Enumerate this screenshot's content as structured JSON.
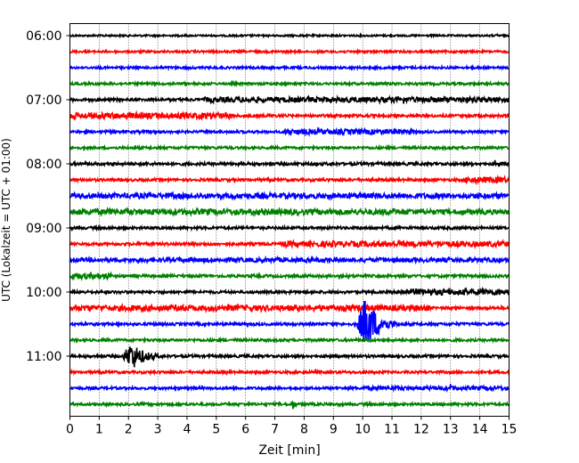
{
  "chart_data": {
    "type": "line",
    "subtype": "helicorder",
    "xlabel": "Zeit  [min]",
    "ylabel": "UTC (Lokalzeit = UTC + 01:00)",
    "xlim": [
      0,
      15
    ],
    "x_ticks": [
      "0",
      "1",
      "2",
      "3",
      "4",
      "5",
      "6",
      "7",
      "8",
      "9",
      "10",
      "11",
      "12",
      "13",
      "14",
      "15"
    ],
    "y_ticks": [
      "06:00",
      "07:00",
      "08:00",
      "09:00",
      "10:00",
      "11:00"
    ],
    "grid": "vertical dotted",
    "colors": [
      "#000000",
      "#ff0000",
      "#0000ff",
      "#008000"
    ],
    "traces": [
      {
        "start": "06:00",
        "color": "black",
        "noise": 1.0,
        "events": [
          {
            "x": 9.5,
            "amp": 2,
            "width": 0.3
          },
          {
            "x": 14.6,
            "amp": 2,
            "width": 0.2
          }
        ]
      },
      {
        "start": "06:15",
        "color": "red",
        "noise": 1.2,
        "events": []
      },
      {
        "start": "06:30",
        "color": "blue",
        "noise": 1.3,
        "events": []
      },
      {
        "start": "06:45",
        "color": "green",
        "noise": 1.3,
        "events": []
      },
      {
        "start": "07:00",
        "color": "black",
        "noise": 1.5,
        "segments": [
          {
            "from": 4.6,
            "to": 15,
            "level": 3
          }
        ],
        "events": [
          {
            "x": 11.4,
            "amp": 5,
            "width": 0.15
          }
        ]
      },
      {
        "start": "07:15",
        "color": "red",
        "noise": 1.5,
        "segments": [
          {
            "from": 0,
            "to": 5.5,
            "level": 3.5
          }
        ],
        "events": []
      },
      {
        "start": "07:30",
        "color": "blue",
        "noise": 1.4,
        "segments": [
          {
            "from": 7.3,
            "to": 11.7,
            "level": 3
          }
        ],
        "events": []
      },
      {
        "start": "07:45",
        "color": "green",
        "noise": 1.4,
        "events": []
      },
      {
        "start": "08:00",
        "color": "black",
        "noise": 1.6,
        "events": [
          {
            "x": 2.1,
            "amp": 2.5,
            "width": 0.2
          },
          {
            "x": 14.5,
            "amp": 6,
            "width": 0.15
          }
        ]
      },
      {
        "start": "08:15",
        "color": "red",
        "noise": 1.5,
        "segments": [
          {
            "from": 13.5,
            "to": 15,
            "level": 3.5
          }
        ],
        "events": []
      },
      {
        "start": "08:30",
        "color": "blue",
        "noise": 3.0,
        "events": []
      },
      {
        "start": "08:45",
        "color": "green",
        "noise": 2.8,
        "segments": [
          {
            "from": 0,
            "to": 11.8,
            "level": 3.3
          }
        ],
        "events": []
      },
      {
        "start": "09:00",
        "color": "black",
        "noise": 1.5,
        "events": []
      },
      {
        "start": "09:15",
        "color": "red",
        "noise": 1.6,
        "segments": [
          {
            "from": 7.2,
            "to": 15,
            "level": 3.2
          }
        ],
        "events": [
          {
            "x": 9.8,
            "amp": 3,
            "width": 0.5
          }
        ]
      },
      {
        "start": "09:30",
        "color": "blue",
        "noise": 2.5,
        "events": [
          {
            "x": 9.7,
            "amp": 2,
            "width": 0.3
          }
        ]
      },
      {
        "start": "09:45",
        "color": "green",
        "noise": 1.5,
        "segments": [
          {
            "from": 0,
            "to": 1.4,
            "level": 3.5
          }
        ],
        "events": []
      },
      {
        "start": "10:00",
        "color": "black",
        "noise": 1.5,
        "segments": [
          {
            "from": 11.2,
            "to": 15,
            "level": 3.3
          }
        ],
        "events": []
      },
      {
        "start": "10:15",
        "color": "red",
        "noise": 1.6,
        "segments": [
          {
            "from": 0,
            "to": 12.3,
            "level": 3.3
          }
        ],
        "events": [
          {
            "x": 1.8,
            "amp": 5,
            "width": 0.2
          }
        ]
      },
      {
        "start": "10:30",
        "color": "blue",
        "noise": 1.5,
        "events": [
          {
            "x": 10.1,
            "amp": 32,
            "width": 1.3
          }
        ]
      },
      {
        "start": "10:45",
        "color": "green",
        "noise": 1.4,
        "events": []
      },
      {
        "start": "11:00",
        "color": "black",
        "noise": 1.5,
        "events": [
          {
            "x": 2.1,
            "amp": 16,
            "width": 1.4
          }
        ]
      },
      {
        "start": "11:15",
        "color": "red",
        "noise": 1.4,
        "events": []
      },
      {
        "start": "11:30",
        "color": "blue",
        "noise": 1.4,
        "segments": [
          {
            "from": 10,
            "to": 15,
            "level": 2.2
          }
        ],
        "events": [
          {
            "x": 12.6,
            "amp": 4,
            "width": 0.3
          },
          {
            "x": 13,
            "amp": 9,
            "width": 0.12
          }
        ]
      },
      {
        "start": "11:45",
        "color": "green",
        "noise": 1.4,
        "events": [
          {
            "x": 7.6,
            "amp": 7,
            "width": 0.3
          },
          {
            "x": 10.2,
            "amp": 2.5,
            "width": 0.3
          }
        ]
      }
    ]
  }
}
